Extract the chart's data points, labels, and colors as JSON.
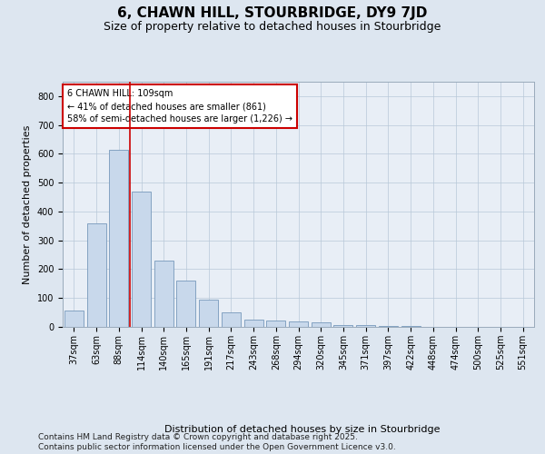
{
  "title": "6, CHAWN HILL, STOURBRIDGE, DY9 7JD",
  "subtitle": "Size of property relative to detached houses in Stourbridge",
  "xlabel": "Distribution of detached houses by size in Stourbridge",
  "ylabel": "Number of detached properties",
  "categories": [
    "37sqm",
    "63sqm",
    "88sqm",
    "114sqm",
    "140sqm",
    "165sqm",
    "191sqm",
    "217sqm",
    "243sqm",
    "268sqm",
    "294sqm",
    "320sqm",
    "345sqm",
    "371sqm",
    "397sqm",
    "422sqm",
    "448sqm",
    "474sqm",
    "500sqm",
    "525sqm",
    "551sqm"
  ],
  "values": [
    57,
    360,
    615,
    470,
    230,
    160,
    95,
    50,
    25,
    22,
    20,
    15,
    5,
    5,
    3,
    2,
    1,
    1,
    1,
    1,
    1
  ],
  "bar_color": "#c8d8eb",
  "bar_edge_color": "#7799bb",
  "vline_color": "#cc0000",
  "annotation_text": "6 CHAWN HILL: 109sqm\n← 41% of detached houses are smaller (861)\n58% of semi-detached houses are larger (1,226) →",
  "annotation_box_color": "#ffffff",
  "annotation_box_edge": "#cc0000",
  "ylim": [
    0,
    850
  ],
  "yticks": [
    0,
    100,
    200,
    300,
    400,
    500,
    600,
    700,
    800
  ],
  "bg_color": "#dde6f0",
  "plot_bg_color": "#e8eef6",
  "footer": "Contains HM Land Registry data © Crown copyright and database right 2025.\nContains public sector information licensed under the Open Government Licence v3.0.",
  "title_fontsize": 11,
  "subtitle_fontsize": 9,
  "ylabel_fontsize": 8,
  "xlabel_fontsize": 8,
  "tick_fontsize": 7,
  "annotation_fontsize": 7,
  "footer_fontsize": 6.5
}
